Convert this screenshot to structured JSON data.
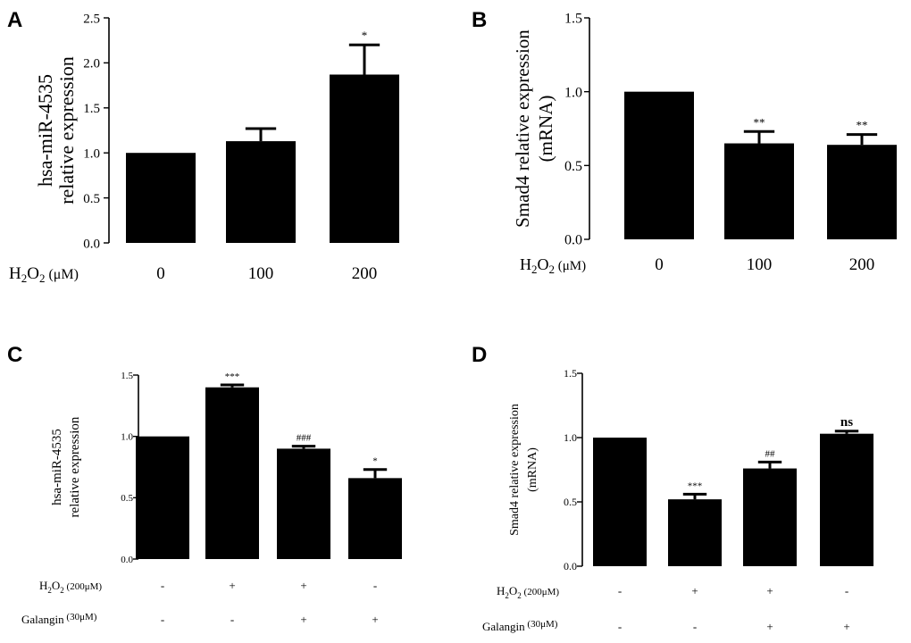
{
  "chart_data": [
    {
      "panel": "A",
      "type": "bar",
      "ylabel_lines": [
        "hsa-miR-4535",
        "relative expression"
      ],
      "ylim": [
        0,
        2.5
      ],
      "yticks": [
        "0.0",
        "0.5",
        "1.0",
        "1.5",
        "2.0",
        "2.5"
      ],
      "treatment_rows": [
        {
          "label": "H",
          "sub": "2",
          "label2": "O",
          "sub2": "2",
          "unit": " (μM)",
          "values": [
            "0",
            "100",
            "200"
          ]
        }
      ],
      "values": [
        1.0,
        1.13,
        1.87
      ],
      "errors": [
        0,
        0.14,
        0.33
      ],
      "annotations": [
        "",
        "",
        "*"
      ]
    },
    {
      "panel": "B",
      "type": "bar",
      "ylabel_lines": [
        "Smad4 relative expression",
        "(mRNA)"
      ],
      "ylim": [
        0,
        1.5
      ],
      "yticks": [
        "0.0",
        "0.5",
        "1.0",
        "1.5"
      ],
      "treatment_rows": [
        {
          "label": "H",
          "sub": "2",
          "label2": "O",
          "sub2": "2",
          "unit": " (μM)",
          "values": [
            "0",
            "100",
            "200"
          ]
        }
      ],
      "values": [
        1.0,
        0.65,
        0.64
      ],
      "errors": [
        0,
        0.08,
        0.07
      ],
      "annotations": [
        "",
        "**",
        "**"
      ]
    },
    {
      "panel": "C",
      "type": "bar",
      "ylabel_lines": [
        "hsa-miR-4535",
        "relative expression"
      ],
      "ylim": [
        0,
        1.5
      ],
      "yticks": [
        "0.0",
        "0.5",
        "1.0",
        "1.5"
      ],
      "treatment_rows": [
        {
          "label": "H",
          "sub": "2",
          "label2": "O",
          "sub2": "2",
          "unit": " (200μM)",
          "values": [
            "-",
            "+",
            "+",
            "-"
          ]
        },
        {
          "label": "Galangin",
          "sub": "",
          "label2": "",
          "sub2": "",
          "unit": "  (30μM)",
          "values": [
            "-",
            "-",
            "+",
            "+"
          ]
        }
      ],
      "values": [
        1.0,
        1.4,
        0.9,
        0.66
      ],
      "errors": [
        0,
        0.02,
        0.02,
        0.07
      ],
      "annotations": [
        "",
        "***",
        "###",
        "*"
      ]
    },
    {
      "panel": "D",
      "type": "bar",
      "ylabel_lines": [
        "Smad4 relative expression",
        "(mRNA)"
      ],
      "ylim": [
        0,
        1.5
      ],
      "yticks": [
        "0.0",
        "0.5",
        "1.0",
        "1.5"
      ],
      "treatment_rows": [
        {
          "label": "H",
          "sub": "2",
          "label2": "O",
          "sub2": "2",
          "unit": " (200μM)",
          "values": [
            "-",
            "+",
            "+",
            "-"
          ]
        },
        {
          "label": "Galangin",
          "sub": "",
          "label2": "",
          "sub2": "",
          "unit": " (30μM)",
          "values": [
            "-",
            "-",
            "+",
            "+"
          ]
        }
      ],
      "values": [
        1.0,
        0.52,
        0.76,
        1.03
      ],
      "errors": [
        0,
        0.04,
        0.05,
        0.02
      ],
      "annotations": [
        "",
        "***",
        "##",
        "ns"
      ]
    }
  ],
  "colors": {
    "bar": "#000000",
    "axis": "#000000"
  }
}
